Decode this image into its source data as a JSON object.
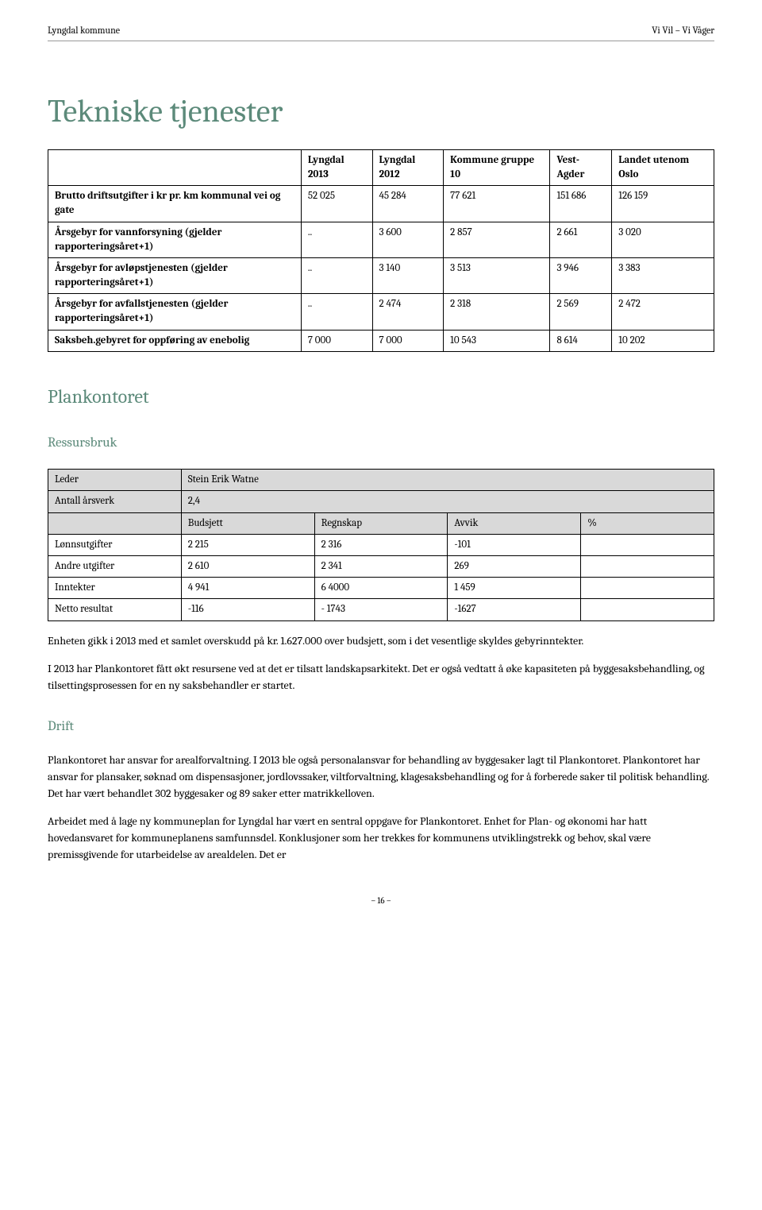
{
  "header": {
    "left": "Lyngdal kommune",
    "right": "Vi Vil – Vi Våger"
  },
  "title": "Tekniske tjenester",
  "table1": {
    "headers": [
      "",
      "Lyngdal 2013",
      "Lyngdal 2012",
      "Kommune gruppe 10",
      "Vest-Agder",
      "Landet utenom Oslo"
    ],
    "rows": [
      {
        "label": "Brutto driftsutgifter i kr pr. km kommunal vei og gate",
        "c1": "52 025",
        "c2": "45 284",
        "c3": "77 621",
        "c4": "151 686",
        "c5": "126 159"
      },
      {
        "label": "Årsgebyr for vannforsyning (gjelder rapporteringsåret+1)",
        "c1": "..",
        "c2": "3 600",
        "c3": "2 857",
        "c4": "2 661",
        "c5": "3 020"
      },
      {
        "label": "Årsgebyr for avløpstjenesten (gjelder rapporteringsåret+1)",
        "c1": "..",
        "c2": "3 140",
        "c3": "3 513",
        "c4": "3 946",
        "c5": "3 383"
      },
      {
        "label": "Årsgebyr for avfallstjenesten (gjelder rapporteringsåret+1)",
        "c1": "..",
        "c2": "2 474",
        "c3": "2 318",
        "c4": "2 569",
        "c5": "2 472"
      },
      {
        "label": "Saksbeh.gebyret for oppføring av enebolig",
        "c1": "7 000",
        "c2": "7 000",
        "c3": "10 543",
        "c4": "8 614",
        "c5": "10 202"
      }
    ]
  },
  "section_plan": "Plankontoret",
  "subsection_ressurs": "Ressursbruk",
  "table2": {
    "leder_label": "Leder",
    "leder_value": "Stein Erik Watne",
    "antall_label": "Antall årsverk",
    "antall_value": "2,4",
    "col_budsjett": "Budsjett",
    "col_regnskap": "Regnskap",
    "col_avvik": "Avvik",
    "col_pct": "%",
    "rows": [
      {
        "label": "Lønnsutgifter",
        "budsjett": "2 215",
        "regnskap": "2 316",
        "avvik": "-101",
        "pct": ""
      },
      {
        "label": "Andre utgifter",
        "budsjett": "2 610",
        "regnskap": "2 341",
        "avvik": "269",
        "pct": ""
      },
      {
        "label": "Inntekter",
        "budsjett": "4 941",
        "regnskap": "6 4000",
        "avvik": "1 459",
        "pct": ""
      },
      {
        "label": "Netto resultat",
        "budsjett": "-116",
        "regnskap": "- 1743",
        "avvik": "-1627",
        "pct": ""
      }
    ]
  },
  "para1": "Enheten gikk i 2013 med et samlet overskudd på kr. 1.627.000 over budsjett, som i det vesentlige skyldes gebyrinntekter.",
  "para2": "I 2013 har Plankontoret fått økt resursene ved at det er tilsatt landskapsarkitekt. Det er også vedtatt å øke kapasiteten på byggesaksbehandling, og tilsettingsprosessen for en ny saksbehandler er startet.",
  "subsection_drift": "Drift",
  "para3": "Plankontoret har ansvar for arealforvaltning. I 2013 ble også personalansvar for behandling av byggesaker lagt til Plankontoret. Plankontoret har ansvar for plansaker, søknad om dispensasjoner, jordlovssaker, viltforvaltning, klagesaksbehandling og for å forberede saker til politisk behandling. Det har vært behandlet 302 byggesaker og 89 saker etter matrikkelloven.",
  "para4": "Arbeidet med å lage ny kommuneplan for Lyngdal har vært en sentral oppgave for Plankontoret. Enhet for Plan- og økonomi har hatt hovedansvaret for kommuneplanens samfunnsdel. Konklusjoner som her trekkes for kommunens utviklingstrekk og behov, skal være premissgivende for utarbeidelse av arealdelen. Det er",
  "page_num": "– 16 –"
}
